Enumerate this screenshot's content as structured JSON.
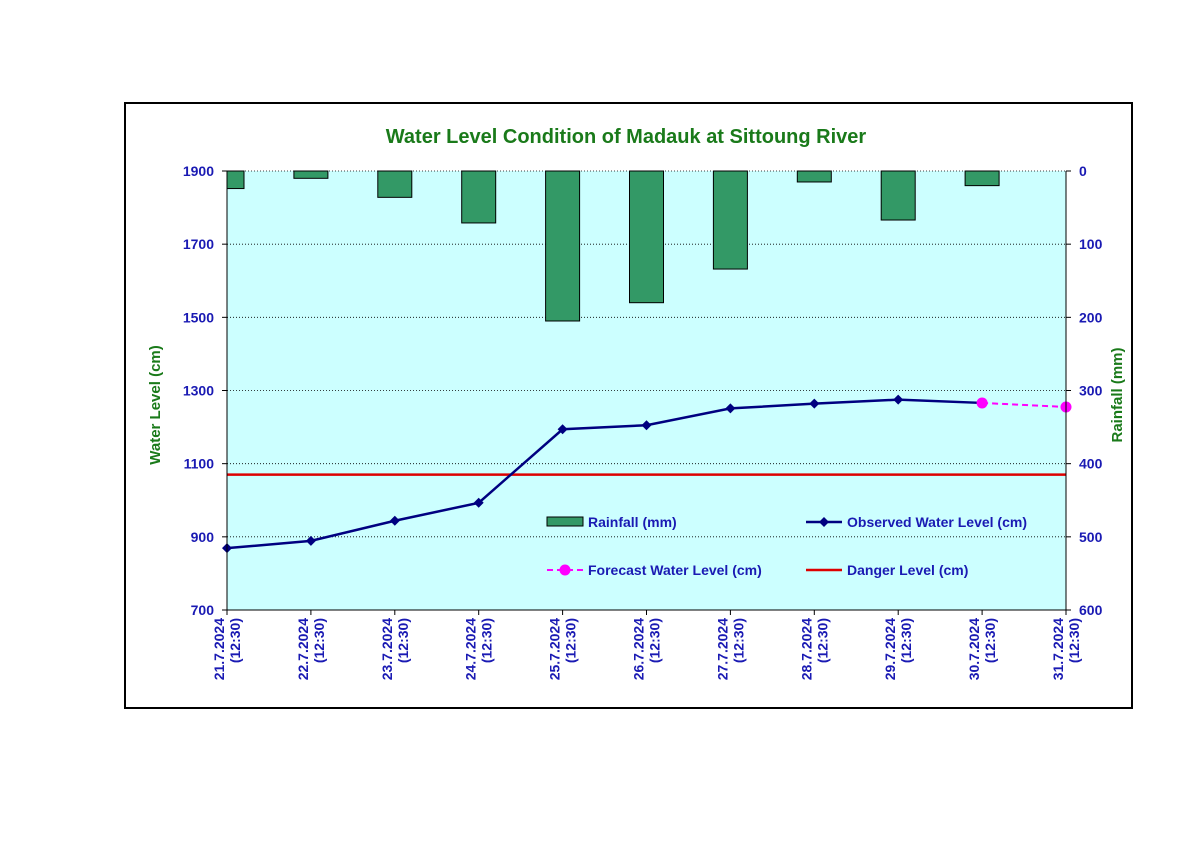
{
  "chart_data": {
    "type": "bar+line",
    "title": "Water Level Condition of Madauk at Sittoung River",
    "y_left_label": "Water Level (cm)",
    "y_right_label": "Rainfall (mm)",
    "y_left_range": [
      700,
      1900
    ],
    "y_left_ticks": [
      "700",
      "900",
      "1100",
      "1300",
      "1500",
      "1700",
      "1900"
    ],
    "y_right_range": [
      0,
      600
    ],
    "y_right_inverted": true,
    "y_right_ticks": [
      "0",
      "100",
      "200",
      "300",
      "400",
      "500",
      "600"
    ],
    "grid": "horizontal dotted",
    "categories": [
      [
        "21.7.2024",
        "(12:30)"
      ],
      [
        "22.7.2024",
        "(12:30)"
      ],
      [
        "23.7.2024",
        "(12:30)"
      ],
      [
        "24.7.2024",
        "(12:30)"
      ],
      [
        "25.7.2024",
        "(12:30)"
      ],
      [
        "26.7.2024",
        "(12:30)"
      ],
      [
        "27.7.2024",
        "(12:30)"
      ],
      [
        "28.7.2024",
        "(12:30)"
      ],
      [
        "29.7.2024",
        "(12:30)"
      ],
      [
        "30.7.2024",
        "(12:30)"
      ],
      [
        "31.7.2024",
        "(12:30)"
      ]
    ],
    "rainfall": {
      "name": "Rainfall (mm)",
      "values": [
        24,
        10,
        36,
        71,
        205,
        180,
        134,
        15,
        67,
        20
      ]
    },
    "observed": {
      "name": "Observed Water Level (cm)",
      "values": [
        869,
        889,
        944,
        993,
        1194,
        1205,
        1251,
        1264,
        1275,
        1266
      ]
    },
    "forecast": {
      "name": "Forecast Water Level (cm)",
      "points": [
        [
          9,
          1266
        ],
        [
          10,
          1255
        ]
      ]
    },
    "danger": {
      "name": "Danger Level (cm)",
      "value": 1070
    },
    "colors": {
      "plot_bg": "#ccffff",
      "bar_fill": "#339966",
      "observed": "#000080",
      "forecast": "#ff00ff",
      "danger": "#dd0000"
    },
    "legend_position": "bottom-right inside plot"
  }
}
